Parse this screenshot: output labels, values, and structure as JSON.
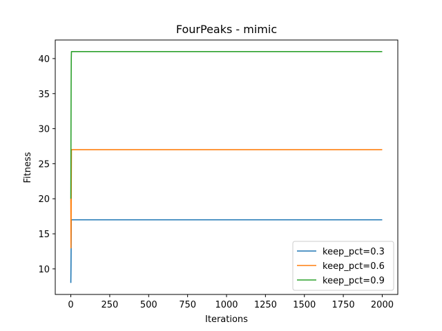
{
  "chart_data": {
    "type": "line",
    "title": "FourPeaks - mimic",
    "xlabel": "Iterations",
    "ylabel": "Fitness",
    "xlim": [
      -100,
      2100
    ],
    "ylim": [
      6.35,
      42.65
    ],
    "xticks": [
      0,
      250,
      500,
      750,
      1000,
      1250,
      1500,
      1750,
      2000
    ],
    "yticks": [
      10,
      15,
      20,
      25,
      30,
      35,
      40
    ],
    "grid": false,
    "legend_position": "lower right",
    "series": [
      {
        "name": "keep_pct=0.3",
        "color": "#1f77b4",
        "x": [
          0,
          1,
          2,
          3,
          4,
          5,
          10,
          2000
        ],
        "y": [
          8,
          10,
          13,
          17,
          17,
          17,
          17,
          17
        ]
      },
      {
        "name": "keep_pct=0.6",
        "color": "#ff7f0e",
        "x": [
          0,
          1,
          2,
          3,
          4,
          5,
          10,
          2000
        ],
        "y": [
          20,
          13,
          16,
          22,
          27,
          27,
          27,
          27
        ]
      },
      {
        "name": "keep_pct=0.9",
        "color": "#2ca02c",
        "x": [
          0,
          1,
          2,
          3,
          4,
          5,
          10,
          2000
        ],
        "y": [
          20,
          29,
          36,
          40,
          41,
          41,
          41,
          41
        ]
      }
    ]
  }
}
